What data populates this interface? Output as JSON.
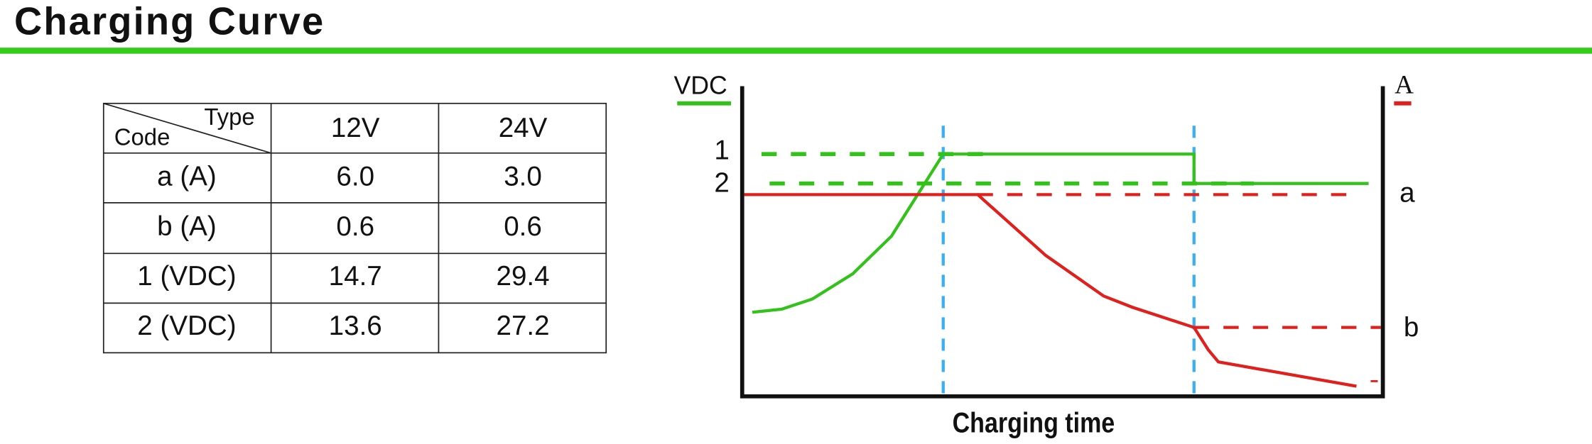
{
  "header": {
    "title": "Charging Curve"
  },
  "table": {
    "corner": {
      "type": "Type",
      "code": "Code"
    },
    "columns": [
      "12V",
      "24V"
    ],
    "rows": [
      [
        "a (A)",
        "6.0",
        "3.0"
      ],
      [
        "b (A)",
        "0.6",
        "0.6"
      ],
      [
        "1 (VDC)",
        "14.7",
        "29.4"
      ],
      [
        "2 (VDC)",
        "13.6",
        "27.2"
      ]
    ]
  },
  "diagram": {
    "left_axis_label": "VDC",
    "right_axis_label": "A",
    "level_labels": {
      "v1": "1",
      "v2": "2",
      "a": "a",
      "b": "b"
    },
    "x_label": "Charging time"
  }
}
